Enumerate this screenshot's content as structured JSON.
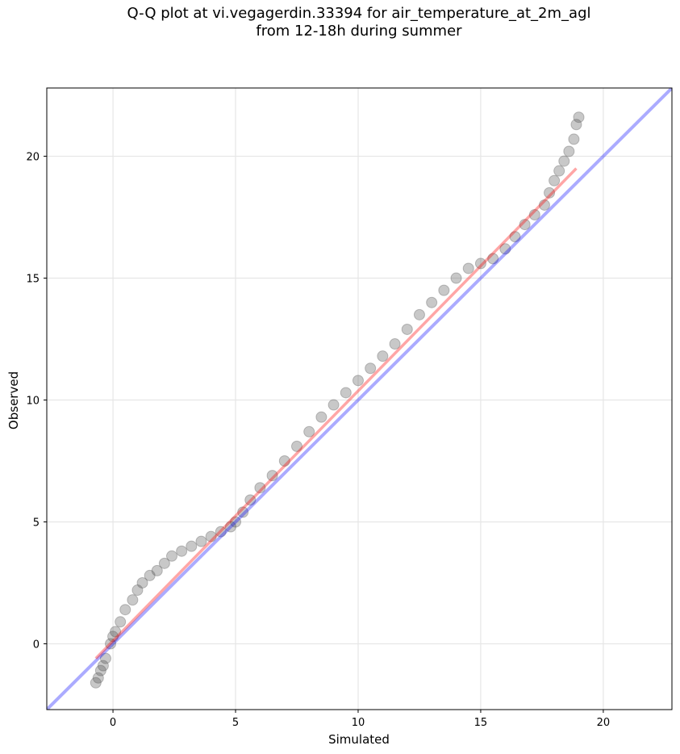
{
  "chart_data": {
    "type": "scatter",
    "title_line1": "Q-Q plot at vi.vegagerdin.33394 for air_temperature_at_2m_agl",
    "title_line2": "from 12-18h during summer",
    "xlabel": "Simulated",
    "ylabel": "Observed",
    "xlim": [
      -2.7,
      22.8
    ],
    "ylim": [
      -2.7,
      22.8
    ],
    "xticks": [
      0,
      5,
      10,
      15,
      20
    ],
    "yticks": [
      0,
      5,
      10,
      15,
      20
    ],
    "xtick_labels": [
      "0",
      "5",
      "10",
      "15",
      "20"
    ],
    "ytick_labels": [
      "0",
      "5",
      "10",
      "15",
      "20"
    ],
    "grid": true,
    "points": {
      "x": [
        -0.7,
        -0.6,
        -0.5,
        -0.4,
        -0.3,
        -0.1,
        0.0,
        0.1,
        0.3,
        0.5,
        0.8,
        1.0,
        1.2,
        1.5,
        1.8,
        2.1,
        2.4,
        2.8,
        3.2,
        3.6,
        4.0,
        4.4,
        4.8,
        5.0,
        5.3,
        5.6,
        6.0,
        6.5,
        7.0,
        7.5,
        8.0,
        8.5,
        9.0,
        9.5,
        10.0,
        10.5,
        11.0,
        11.5,
        12.0,
        12.5,
        13.0,
        13.5,
        14.0,
        14.5,
        15.0,
        15.5,
        16.0,
        16.4,
        16.8,
        17.2,
        17.6,
        17.8,
        18.0,
        18.2,
        18.4,
        18.6,
        18.8,
        18.9,
        19.0
      ],
      "y": [
        -1.6,
        -1.4,
        -1.1,
        -0.9,
        -0.6,
        0.0,
        0.3,
        0.5,
        0.9,
        1.4,
        1.8,
        2.2,
        2.5,
        2.8,
        3.0,
        3.3,
        3.6,
        3.8,
        4.0,
        4.2,
        4.4,
        4.6,
        4.8,
        5.0,
        5.4,
        5.9,
        6.4,
        6.9,
        7.5,
        8.1,
        8.7,
        9.3,
        9.8,
        10.3,
        10.8,
        11.3,
        11.8,
        12.3,
        12.9,
        13.5,
        14.0,
        14.5,
        15.0,
        15.4,
        15.6,
        15.8,
        16.2,
        16.7,
        17.2,
        17.6,
        18.0,
        18.5,
        19.0,
        19.4,
        19.8,
        20.2,
        20.7,
        21.3,
        21.6
      ]
    },
    "identity_line": {
      "x": [
        -2.7,
        22.8
      ],
      "y": [
        -2.7,
        22.8
      ],
      "color": "#0000ff"
    },
    "fit_line": {
      "x": [
        -0.7,
        18.9
      ],
      "y": [
        -0.6,
        19.5
      ],
      "color": "#ff0000"
    },
    "point_color": "#555555"
  }
}
